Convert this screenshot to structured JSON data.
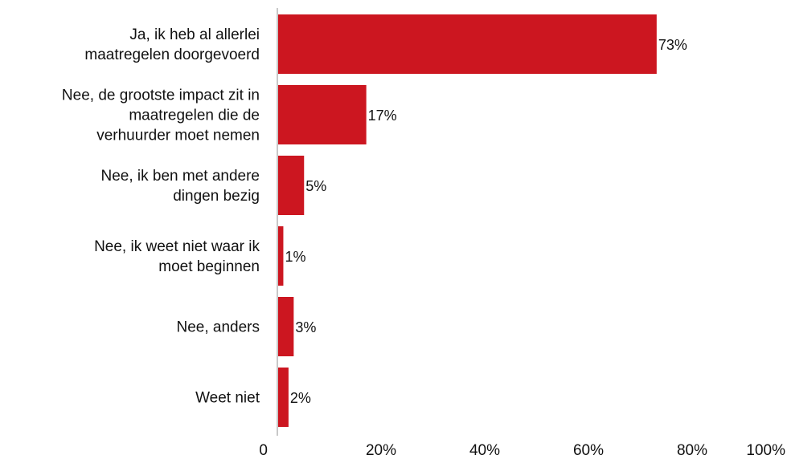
{
  "chart_data": {
    "type": "bar",
    "orientation": "horizontal",
    "categories": [
      [
        "Ja, ik heb al allerlei",
        "maatregelen doorgevoerd"
      ],
      [
        "Nee, de grootste impact zit in",
        "maatregelen die de",
        "verhuurder moet nemen"
      ],
      [
        "Nee, ik ben met andere",
        "dingen bezig"
      ],
      [
        "Nee, ik weet niet waar ik",
        "moet beginnen"
      ],
      [
        "Nee, anders"
      ],
      [
        "Weet niet"
      ]
    ],
    "values": [
      73,
      17,
      5,
      1,
      3,
      2
    ],
    "data_labels": [
      "73%",
      "17%",
      "5%",
      "1%",
      "3%",
      "2%"
    ],
    "xlim": [
      0,
      100
    ],
    "x_ticks": [
      0,
      20,
      40,
      60,
      80,
      100
    ],
    "x_tick_labels": [
      "0",
      "20%",
      "40%",
      "60%",
      "80%",
      "100%"
    ],
    "grid": false,
    "bar_color": "#cc1620",
    "axis_color": "#c8c8c8"
  }
}
